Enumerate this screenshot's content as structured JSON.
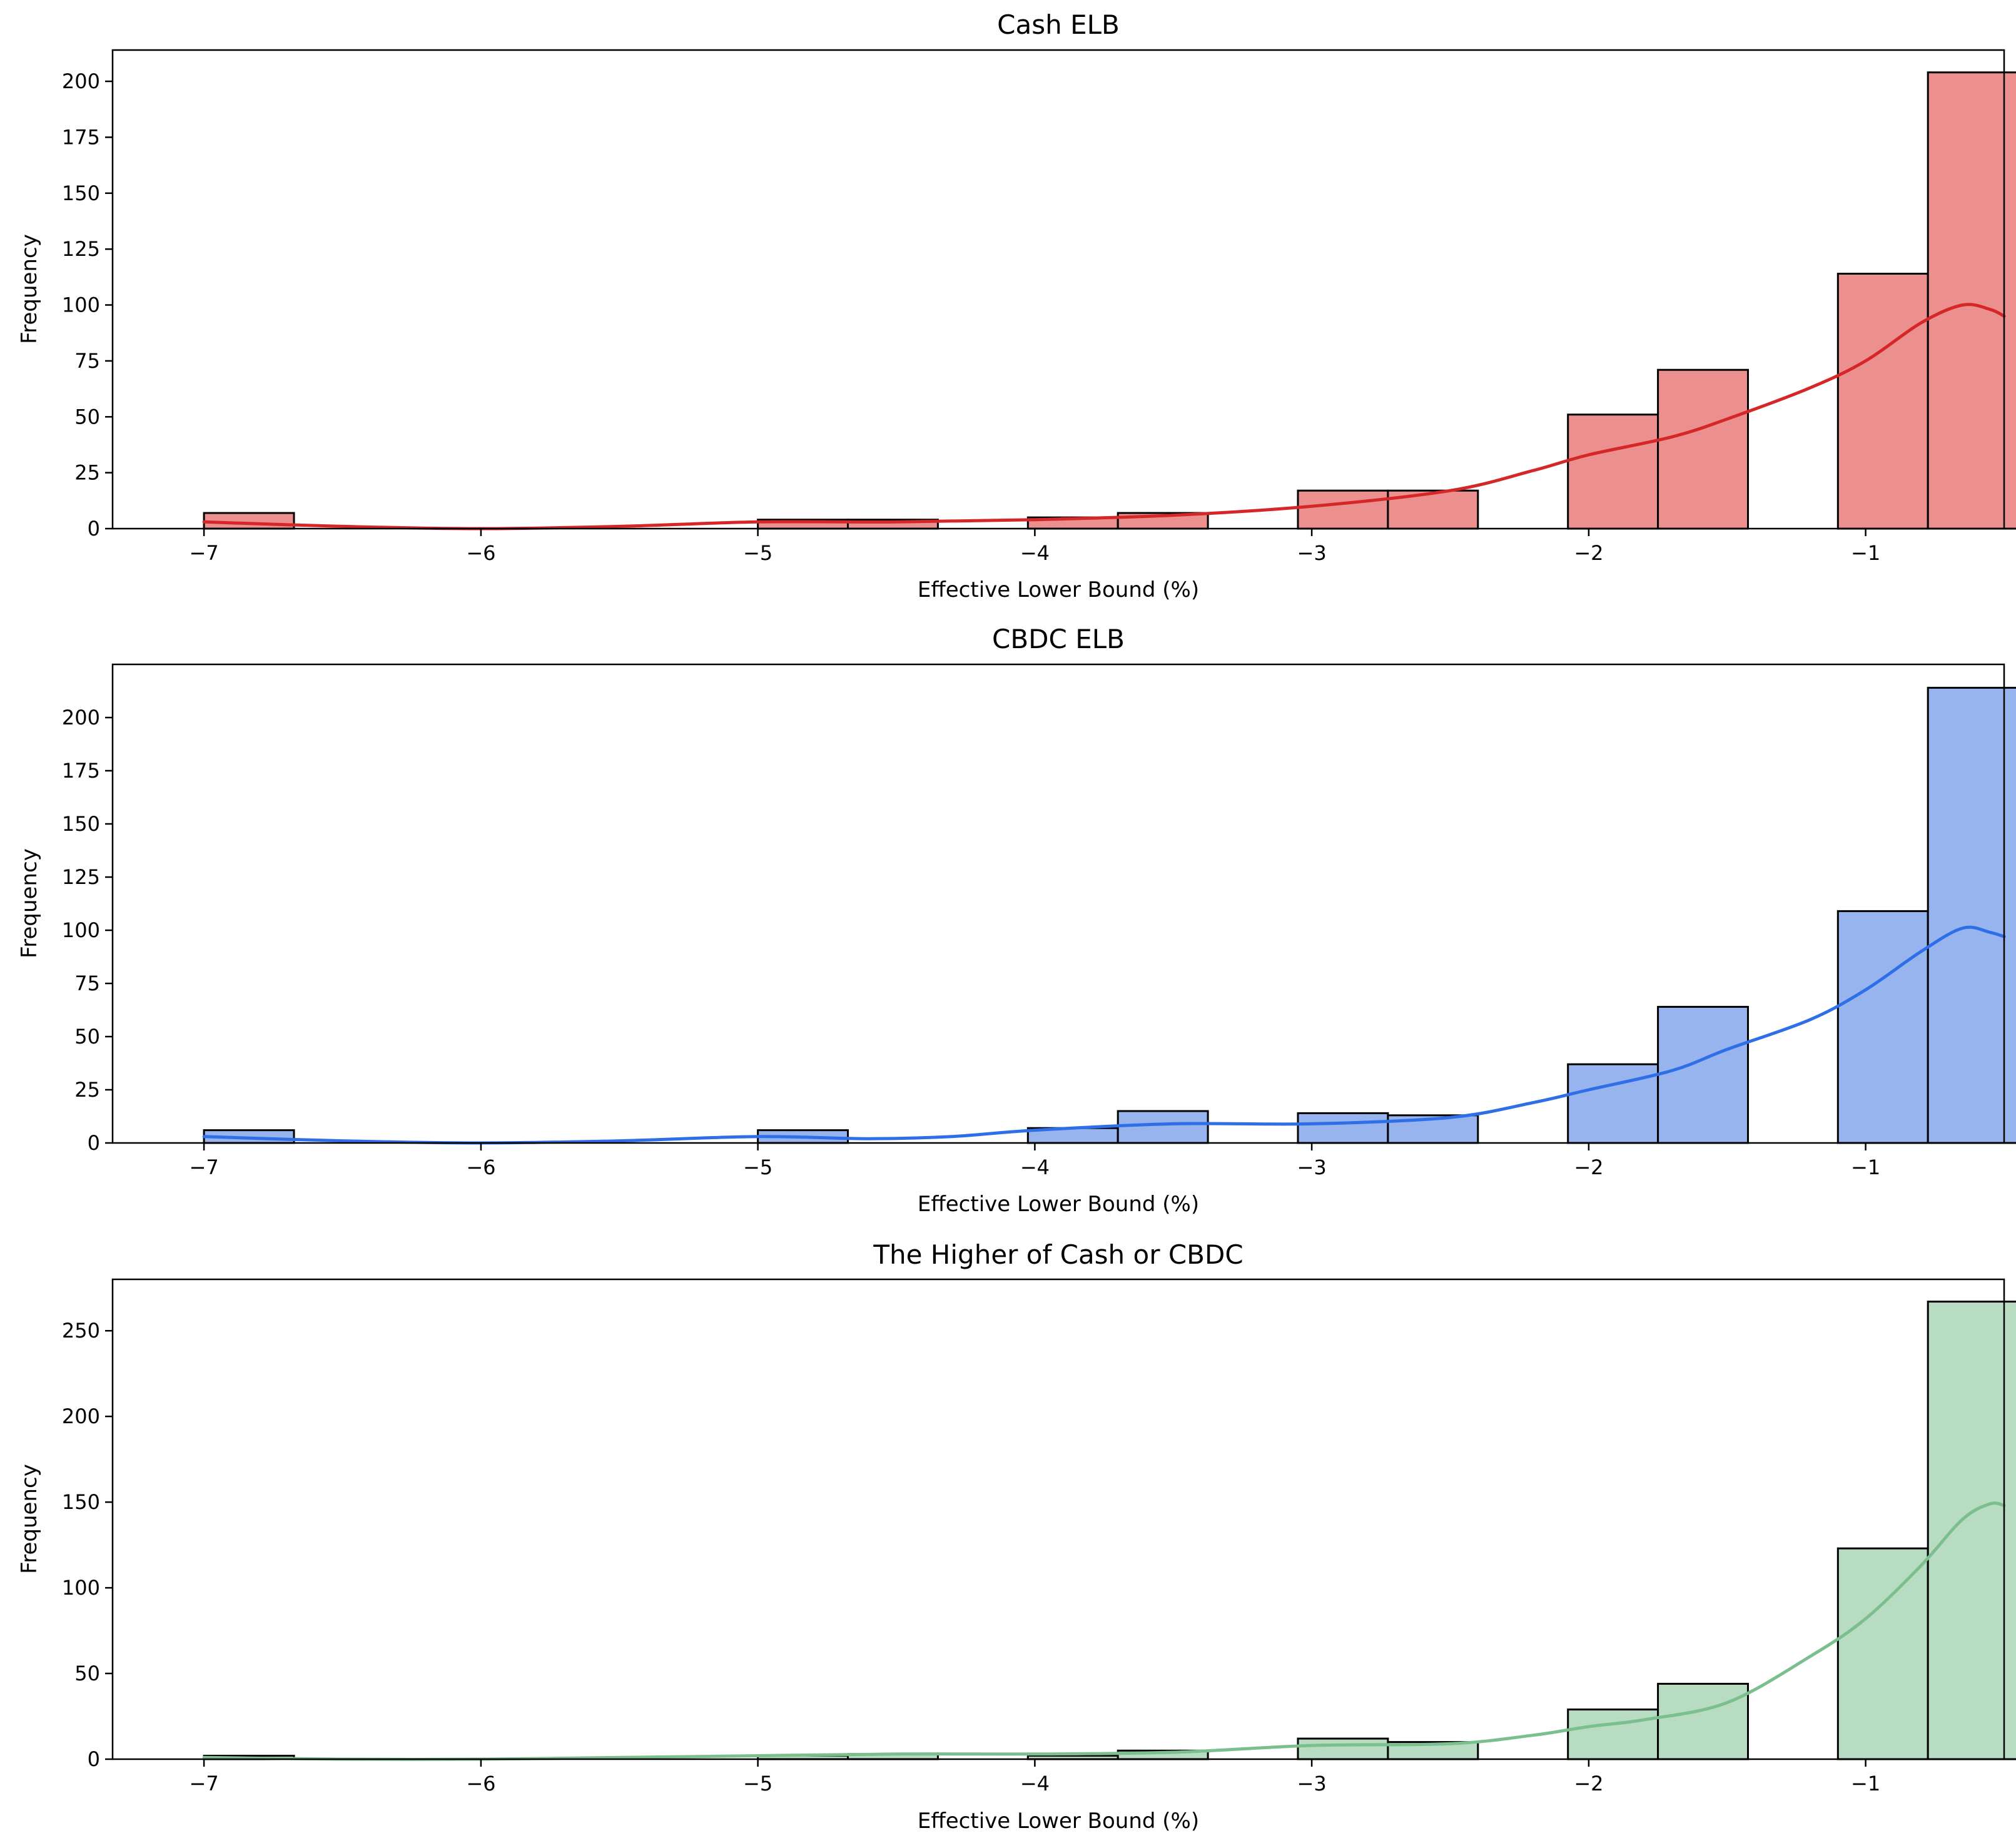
{
  "chart_data": [
    {
      "type": "bar",
      "title": "Cash ELB",
      "xlabel": "Effective Lower Bound (%)",
      "ylabel": "Frequency",
      "xlim": [
        -7.33,
        -0.5
      ],
      "ylim": [
        0,
        214
      ],
      "xticks": [
        -7,
        -6,
        -5,
        -4,
        -3,
        -2,
        -1
      ],
      "xtick_labels": [
        "−7",
        "−6",
        "−5",
        "−4",
        "−3",
        "−2",
        "−1"
      ],
      "yticks": [
        0,
        25,
        50,
        75,
        100,
        125,
        150,
        175,
        200
      ],
      "ytick_labels": [
        "0",
        "25",
        "50",
        "75",
        "100",
        "125",
        "150",
        "175",
        "200"
      ],
      "bins": [
        {
          "x0": -7.0,
          "x1": -6.675,
          "count": 7
        },
        {
          "x0": -5.0,
          "x1": -4.675,
          "count": 4
        },
        {
          "x0": -4.675,
          "x1": -4.35,
          "count": 4
        },
        {
          "x0": -4.025,
          "x1": -3.7,
          "count": 5
        },
        {
          "x0": -3.7,
          "x1": -3.375,
          "count": 7
        },
        {
          "x0": -3.05,
          "x1": -2.725,
          "count": 17
        },
        {
          "x0": -2.725,
          "x1": -2.4,
          "count": 17
        },
        {
          "x0": -2.075,
          "x1": -1.75,
          "count": 51
        },
        {
          "x0": -1.75,
          "x1": -1.425,
          "count": 71
        },
        {
          "x0": -1.1,
          "x1": -0.775,
          "count": 114
        },
        {
          "x0": -0.775,
          "x1": -0.45,
          "count": 204
        }
      ],
      "kde": {
        "x": [
          -7.0,
          -6.5,
          -6.0,
          -5.5,
          -5.0,
          -4.5,
          -4.0,
          -3.5,
          -3.0,
          -2.5,
          -2.2,
          -2.0,
          -1.7,
          -1.5,
          -1.2,
          -1.0,
          -0.8,
          -0.65,
          -0.55,
          -0.5
        ],
        "y": [
          3,
          1,
          0,
          1,
          3,
          3,
          4,
          6,
          10,
          17,
          26,
          33,
          41,
          49,
          63,
          75,
          92,
          100,
          98,
          95
        ]
      },
      "colors": {
        "bar": "#ec8f8f",
        "line": "#d62728"
      }
    },
    {
      "type": "bar",
      "title": "CBDC ELB",
      "xlabel": "Effective Lower Bound (%)",
      "ylabel": "Frequency",
      "xlim": [
        -7.33,
        -0.5
      ],
      "ylim": [
        0,
        225
      ],
      "xticks": [
        -7,
        -6,
        -5,
        -4,
        -3,
        -2,
        -1
      ],
      "xtick_labels": [
        "−7",
        "−6",
        "−5",
        "−4",
        "−3",
        "−2",
        "−1"
      ],
      "yticks": [
        0,
        25,
        50,
        75,
        100,
        125,
        150,
        175,
        200
      ],
      "ytick_labels": [
        "0",
        "25",
        "50",
        "75",
        "100",
        "125",
        "150",
        "175",
        "200"
      ],
      "bins": [
        {
          "x0": -7.0,
          "x1": -6.675,
          "count": 6
        },
        {
          "x0": -5.0,
          "x1": -4.675,
          "count": 6
        },
        {
          "x0": -4.025,
          "x1": -3.7,
          "count": 7
        },
        {
          "x0": -3.7,
          "x1": -3.375,
          "count": 15
        },
        {
          "x0": -3.05,
          "x1": -2.725,
          "count": 14
        },
        {
          "x0": -2.725,
          "x1": -2.4,
          "count": 13
        },
        {
          "x0": -2.075,
          "x1": -1.75,
          "count": 37
        },
        {
          "x0": -1.75,
          "x1": -1.425,
          "count": 64
        },
        {
          "x0": -1.1,
          "x1": -0.775,
          "count": 109
        },
        {
          "x0": -0.775,
          "x1": -0.45,
          "count": 214
        }
      ],
      "kde": {
        "x": [
          -7.0,
          -6.5,
          -6.0,
          -5.5,
          -5.0,
          -4.6,
          -4.3,
          -4.0,
          -3.5,
          -3.0,
          -2.5,
          -2.2,
          -2.0,
          -1.7,
          -1.5,
          -1.2,
          -1.0,
          -0.8,
          -0.65,
          -0.55,
          -0.5
        ],
        "y": [
          3,
          1,
          0,
          1,
          3,
          2,
          3,
          6,
          9,
          9,
          12,
          19,
          25,
          34,
          44,
          58,
          72,
          90,
          101,
          99,
          97
        ]
      },
      "colors": {
        "bar": "#97b4ee",
        "line": "#2e6fe8"
      }
    },
    {
      "type": "bar",
      "title": "The Higher of Cash or CBDC",
      "xlabel": "Effective Lower Bound (%)",
      "ylabel": "Frequency",
      "xlim": [
        -7.33,
        -0.5
      ],
      "ylim": [
        0,
        280
      ],
      "xticks": [
        -7,
        -6,
        -5,
        -4,
        -3,
        -2,
        -1
      ],
      "xtick_labels": [
        "−7",
        "−6",
        "−5",
        "−4",
        "−3",
        "−2",
        "−1"
      ],
      "yticks": [
        0,
        50,
        100,
        150,
        200,
        250
      ],
      "ytick_labels": [
        "0",
        "50",
        "100",
        "150",
        "200",
        "250"
      ],
      "bins": [
        {
          "x0": -7.0,
          "x1": -6.675,
          "count": 2
        },
        {
          "x0": -5.0,
          "x1": -4.675,
          "count": 2
        },
        {
          "x0": -4.675,
          "x1": -4.35,
          "count": 3
        },
        {
          "x0": -4.025,
          "x1": -3.7,
          "count": 2
        },
        {
          "x0": -3.7,
          "x1": -3.375,
          "count": 5
        },
        {
          "x0": -3.05,
          "x1": -2.725,
          "count": 12
        },
        {
          "x0": -2.725,
          "x1": -2.4,
          "count": 10
        },
        {
          "x0": -2.075,
          "x1": -1.75,
          "count": 29
        },
        {
          "x0": -1.75,
          "x1": -1.425,
          "count": 44
        },
        {
          "x0": -1.1,
          "x1": -0.775,
          "count": 123
        },
        {
          "x0": -0.775,
          "x1": -0.45,
          "count": 267
        }
      ],
      "kde": {
        "x": [
          -7.0,
          -6.5,
          -6.0,
          -5.5,
          -5.0,
          -4.5,
          -4.0,
          -3.5,
          -3.0,
          -2.5,
          -2.2,
          -2.0,
          -1.8,
          -1.5,
          -1.2,
          -1.0,
          -0.8,
          -0.65,
          -0.55,
          -0.5
        ],
        "y": [
          1,
          0,
          0,
          1,
          2,
          3,
          3,
          4,
          8,
          9,
          14,
          19,
          23,
          33,
          60,
          82,
          113,
          140,
          149,
          148
        ]
      },
      "colors": {
        "bar": "#b8dcc2",
        "line": "#7bbf8e"
      }
    }
  ]
}
